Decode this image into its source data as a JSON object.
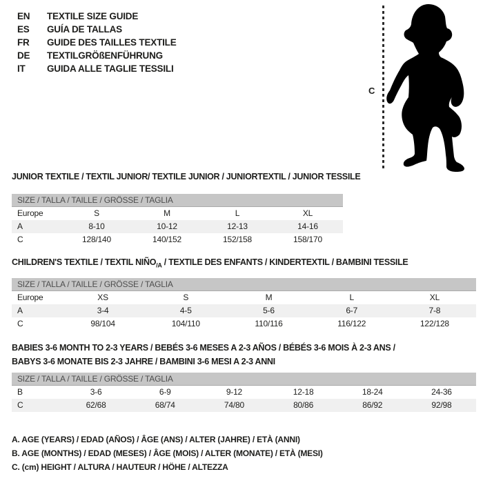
{
  "colors": {
    "background": "#ffffff",
    "text": "#1d1d1b",
    "table_header_bg": "#c6c6c6",
    "table_header_text": "#4d4d4d",
    "row_alt_bg": "#f0f0f0",
    "silhouette": "#000000"
  },
  "languages": [
    {
      "code": "EN",
      "label": "TEXTILE SIZE GUIDE"
    },
    {
      "code": "ES",
      "label": "GUÍA DE TALLAS"
    },
    {
      "code": "FR",
      "label": "GUIDE DES TAILLES TEXTILE"
    },
    {
      "code": "DE",
      "label": "TEXTILGRÖßENFÜHRUNG"
    },
    {
      "code": "IT",
      "label": "GUIDA ALLE TAGLIE TESSILI"
    }
  ],
  "figure": {
    "icon": "baby-silhouette",
    "measure_label": "C"
  },
  "sections": [
    {
      "title": "JUNIOR TEXTILE / TEXTIL JUNIOR/ TEXTILE JUNIOR / JUNIORTEXTIL / JUNIOR TESSILE",
      "size_header": "SIZE / TALLA / TAILLE / GRÖSSE / TAGLIA",
      "rows": [
        {
          "label": "Europe",
          "values": [
            "S",
            "M",
            "L",
            "XL"
          ]
        },
        {
          "label": "A",
          "values": [
            "8-10",
            "10-12",
            "12-13",
            "14-16"
          ]
        },
        {
          "label": "C",
          "values": [
            "128/140",
            "140/152",
            "152/158",
            "158/170"
          ]
        }
      ]
    },
    {
      "title_pre": "CHILDREN'S TEXTILE / TEXTIL NIÑO",
      "title_sub": "/A",
      "title_post": " / TEXTILE DES ENFANTS / KINDERTEXTIL / BAMBINI TESSILE",
      "size_header": "SIZE / TALLA / TAILLE / GRÖSSE / TAGLIA",
      "rows": [
        {
          "label": "Europe",
          "values": [
            "XS",
            "S",
            "M",
            "L",
            "XL"
          ]
        },
        {
          "label": "A",
          "values": [
            "3-4",
            "4-5",
            "5-6",
            "6-7",
            "7-8"
          ]
        },
        {
          "label": "C",
          "values": [
            "98/104",
            "104/110",
            "110/116",
            "116/122",
            "122/128"
          ]
        }
      ]
    },
    {
      "title_line1": "BABIES 3-6 MONTH TO 2-3 YEARS / BEBÉS 3-6 MESES A 2-3 AÑOS / BÉBÉS 3-6 MOIS À 2-3 ANS /",
      "title_line2": "BABYS 3-6 MONATE BIS 2-3 JAHRE / BAMBINI 3-6 MESI A 2-3 ANNI",
      "size_header": "SIZE / TALLA / TAILLE / GRÖSSE / TAGLIA",
      "rows": [
        {
          "label": "B",
          "values": [
            "3-6",
            "6-9",
            "9-12",
            "12-18",
            "18-24",
            "24-36"
          ]
        },
        {
          "label": "C",
          "values": [
            "62/68",
            "68/74",
            "74/80",
            "80/86",
            "86/92",
            "92/98"
          ]
        }
      ]
    }
  ],
  "notes": [
    "A. AGE (YEARS) / EDAD (AÑOS) / ÂGE (ANS) / ALTER (JAHRE) / ETÀ (ANNI)",
    "B. AGE (MONTHS) / EDAD (MESES) / ÂGE (MOIS) / ALTER (MONATE) / ETÀ (MESI)",
    "C. (cm) HEIGHT / ALTURA / HAUTEUR / HÖHE / ALTEZZA"
  ]
}
